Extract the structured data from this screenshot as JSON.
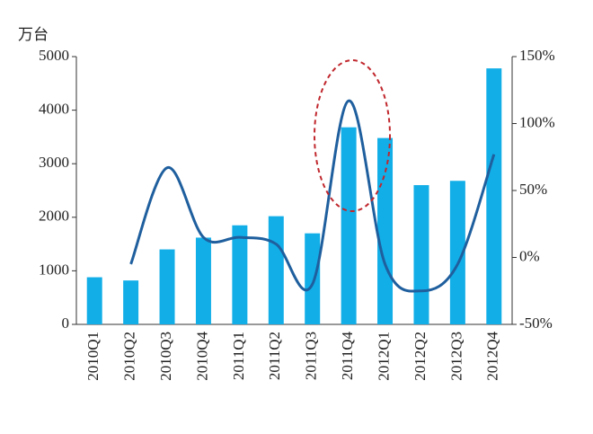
{
  "chart_data": {
    "type": "bar_line",
    "y_label": "万台",
    "categories": [
      "2010Q1",
      "2010Q2",
      "2010Q3",
      "2010Q4",
      "2011Q1",
      "2011Q2",
      "2011Q3",
      "2011Q4",
      "2012Q1",
      "2012Q2",
      "2012Q3",
      "2012Q4"
    ],
    "series": [
      {
        "type": "bar",
        "color": "#12aee8",
        "values": [
          880,
          820,
          1400,
          1620,
          1850,
          2020,
          1700,
          3680,
          3480,
          2600,
          2680,
          4780
        ]
      },
      {
        "type": "line",
        "axis": "y2",
        "color": "#1f5f9e",
        "values": [
          null,
          -5,
          67,
          15,
          15,
          10,
          -20,
          117,
          -5,
          -25,
          -5,
          77
        ]
      }
    ],
    "ylim": [
      0,
      5000
    ],
    "yticks": [
      0,
      1000,
      2000,
      3000,
      4000,
      5000
    ],
    "y2lim": [
      -50,
      150
    ],
    "y2ticks": [
      {
        "value": -50,
        "label": "-50%"
      },
      {
        "value": 0,
        "label": "0%"
      },
      {
        "value": 50,
        "label": "50%"
      },
      {
        "value": 100,
        "label": "100%"
      },
      {
        "value": 150,
        "label": "150%"
      }
    ]
  }
}
